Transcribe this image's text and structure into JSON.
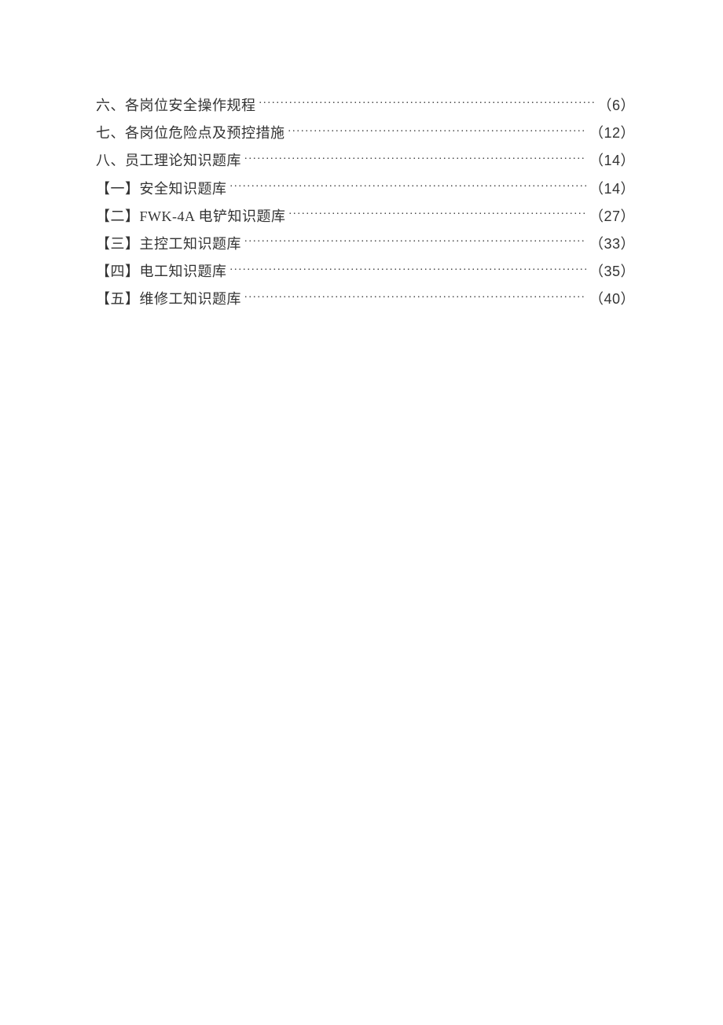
{
  "toc": {
    "background_color": "#ffffff",
    "text_color": "#333333",
    "font_size_pt": 14,
    "line_spacing": 10,
    "leader_char": ".",
    "entries": [
      {
        "title": "六、各岗位安全操作规程",
        "page": "6"
      },
      {
        "title": "七、各岗位危险点及预控措施",
        "page": "12"
      },
      {
        "title": "八、员工理论知识题库",
        "page": "14"
      },
      {
        "title": "【一】安全知识题库",
        "page": "14"
      },
      {
        "title": "【二】FWK-4A 电铲知识题库",
        "page": "27"
      },
      {
        "title": "【三】主控工知识题库",
        "page": "33"
      },
      {
        "title": "【四】电工知识题库",
        "page": "35"
      },
      {
        "title": "【五】维修工知识题库",
        "page": "40"
      }
    ]
  }
}
